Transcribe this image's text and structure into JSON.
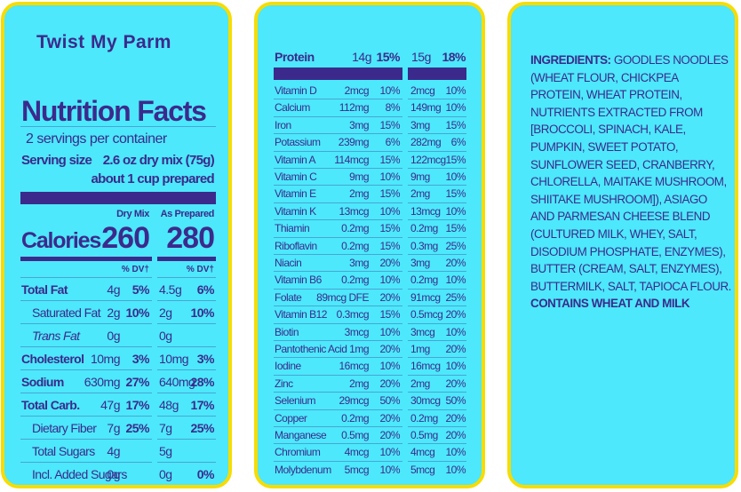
{
  "panel1": {
    "brand": "Twist My Parm",
    "title": "Nutrition Facts",
    "servings": "2 servings per container",
    "serving_size_label": "Serving size",
    "serving_size": "2.6 oz dry mix (75g)",
    "serving_size_2": "about 1 cup prepared",
    "col_heads": [
      "Dry Mix",
      "As Prepared"
    ],
    "calories_label": "Calories",
    "calories": [
      "260",
      "280"
    ],
    "dv_heads": [
      "% DV†",
      "% DV†"
    ],
    "rows": [
      [
        "Total Fat",
        "4g",
        "5%",
        "4.5g",
        "6%"
      ],
      [
        "Saturated Fat",
        "2g",
        "10%",
        "2g",
        "10%"
      ],
      [
        "Trans Fat",
        "0g",
        null,
        "0g",
        null
      ],
      [
        "Cholesterol",
        "10mg",
        "3%",
        "10mg",
        "3%"
      ],
      [
        "Sodium",
        "630mg",
        "27%",
        "640mg",
        "28%"
      ],
      [
        "Total Carb.",
        "47g",
        "17%",
        "48g",
        "17%"
      ],
      [
        "Dietary Fiber",
        "7g",
        "25%",
        "7g",
        "25%"
      ],
      [
        "Total Sugars",
        "4g",
        null,
        "5g",
        null
      ],
      [
        "Incl. Added Sugars",
        "0g",
        null,
        "0g",
        "0%"
      ]
    ]
  },
  "panel2": {
    "protein": [
      "Protein",
      "14g",
      "15%",
      "15g",
      "18%"
    ],
    "rows": [
      [
        "Vitamin D",
        "2mcg",
        "10%",
        "2mcg",
        "10%"
      ],
      [
        "Calcium",
        "112mg",
        "8%",
        "149mg",
        "10%"
      ],
      [
        "Iron",
        "3mg",
        "15%",
        "3mg",
        "15%"
      ],
      [
        "Potassium",
        "239mg",
        "6%",
        "282mg",
        "6%"
      ],
      [
        "Vitamin A",
        "114mcg",
        "15%",
        "122mcg",
        "15%"
      ],
      [
        "Vitamin C",
        "9mg",
        "10%",
        "9mg",
        "10%"
      ],
      [
        "Vitamin E",
        "2mg",
        "15%",
        "2mg",
        "15%"
      ],
      [
        "Vitamin K",
        "13mcg",
        "10%",
        "13mcg",
        "10%"
      ],
      [
        "Thiamin",
        "0.2mg",
        "15%",
        "0.2mg",
        "15%"
      ],
      [
        "Riboflavin",
        "0.2mg",
        "15%",
        "0.3mg",
        "25%"
      ],
      [
        "Niacin",
        "3mg",
        "20%",
        "3mg",
        "20%"
      ],
      [
        "Vitamin B6",
        "0.2mg",
        "10%",
        "0.2mg",
        "10%"
      ],
      [
        "Folate",
        "89mcg DFE",
        "20%",
        "91mcg",
        "25%"
      ],
      [
        "Vitamin B12",
        "0.3mcg",
        "15%",
        "0.5mcg",
        "20%"
      ],
      [
        "Biotin",
        "3mcg",
        "10%",
        "3mcg",
        "10%"
      ],
      [
        "Pantothenic Acid",
        "1mg",
        "20%",
        "1mg",
        "20%"
      ],
      [
        "Iodine",
        "16mcg",
        "10%",
        "16mcg",
        "10%"
      ],
      [
        "Zinc",
        "2mg",
        "20%",
        "2mg",
        "20%"
      ],
      [
        "Selenium",
        "29mcg",
        "50%",
        "30mcg",
        "50%"
      ],
      [
        "Copper",
        "0.2mg",
        "20%",
        "0.2mg",
        "20%"
      ],
      [
        "Manganese",
        "0.5mg",
        "20%",
        "0.5mg",
        "20%"
      ],
      [
        "Chromium",
        "4mcg",
        "10%",
        "4mcg",
        "10%"
      ],
      [
        "Molybdenum",
        "5mcg",
        "10%",
        "5mcg",
        "10%"
      ]
    ]
  },
  "panel3": {
    "ingredients_label": "INGREDIENTS:",
    "ingredients": "GOODLES NOODLES (WHEAT FLOUR, CHICKPEA PROTEIN, WHEAT PROTEIN, NUTRIENTS EXTRACTED FROM [BROCCOLI, SPINACH, KALE, PUMPKIN, SWEET POTATO, SUNFLOWER SEED, CRANBERRY, CHLORELLA, MAITAKE MUSHROOM, SHIITAKE MUSHROOM]), ASIAGO AND PARMESAN CHEESE BLEND (CULTURED MILK, WHEY, SALT, DISODIUM PHOSPHATE, ENZYMES), BUTTER (CREAM, SALT, ENZYMES), BUTTERMILK, SALT, TAPIOCA FLOUR.",
    "allergens": "CONTAINS WHEAT AND MILK"
  }
}
